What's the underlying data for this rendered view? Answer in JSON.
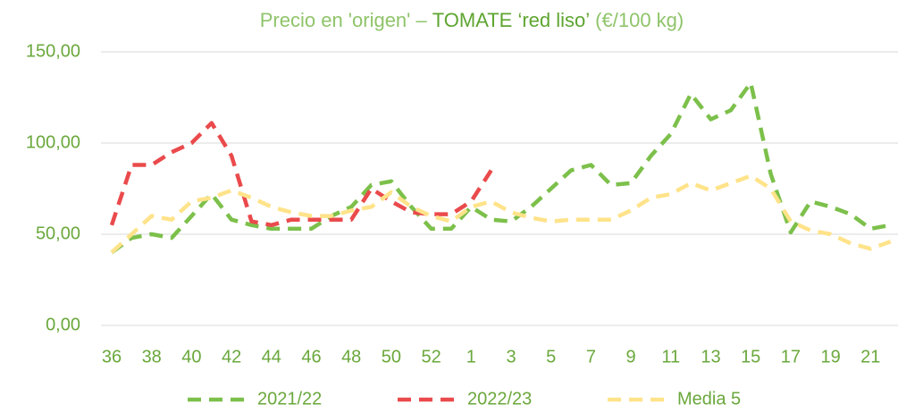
{
  "chart_data": {
    "type": "line",
    "title": [
      "Precio en 'origen' –",
      "TOMATE ‘red liso’",
      "(€/100 kg)"
    ],
    "categories": [
      "36",
      null,
      "38",
      null,
      "40",
      null,
      "42",
      null,
      "44",
      null,
      "46",
      null,
      "48",
      null,
      "50",
      null,
      "52",
      null,
      "1",
      null,
      "3",
      null,
      "5",
      null,
      "7",
      null,
      "9",
      null,
      "11",
      null,
      "13",
      null,
      "15",
      null,
      "17",
      null,
      "19",
      null,
      "21",
      null
    ],
    "series": [
      {
        "name": "2021/22",
        "color": "#7cc04b",
        "values": [
          40,
          48,
          50,
          48,
          60,
          72,
          58,
          55,
          53,
          53,
          53,
          60,
          65,
          77,
          79,
          65,
          53,
          53,
          65,
          58,
          57,
          65,
          75,
          85,
          88,
          77,
          78,
          93,
          105,
          127,
          113,
          118,
          133,
          83,
          51,
          68,
          65,
          61,
          53,
          55
        ]
      },
      {
        "name": "2022/23",
        "color": "#ea4a4c",
        "values": [
          55,
          88,
          88,
          95,
          100,
          111,
          93,
          57,
          55,
          58,
          58,
          58,
          58,
          75,
          68,
          62,
          61,
          61,
          68,
          85,
          null,
          null,
          null,
          null,
          null,
          null,
          null,
          null,
          null,
          null,
          null,
          null,
          null,
          null,
          null,
          null,
          null,
          null,
          null,
          null
        ]
      },
      {
        "name": "Media 5",
        "color": "#ffe38a",
        "values": [
          40,
          50,
          60,
          58,
          68,
          70,
          74,
          70,
          65,
          62,
          60,
          60,
          63,
          65,
          73,
          65,
          60,
          57,
          65,
          68,
          62,
          59,
          57,
          58,
          58,
          58,
          63,
          70,
          72,
          78,
          74,
          78,
          82,
          75,
          57,
          52,
          50,
          45,
          42,
          46
        ]
      }
    ],
    "ylim": [
      0,
      150
    ],
    "yticks": [
      {
        "value": 0,
        "label": "0,00"
      },
      {
        "value": 50,
        "label": "50,00"
      },
      {
        "value": 100,
        "label": "100,00"
      },
      {
        "value": 150,
        "label": "150,00"
      }
    ],
    "grid": true
  }
}
